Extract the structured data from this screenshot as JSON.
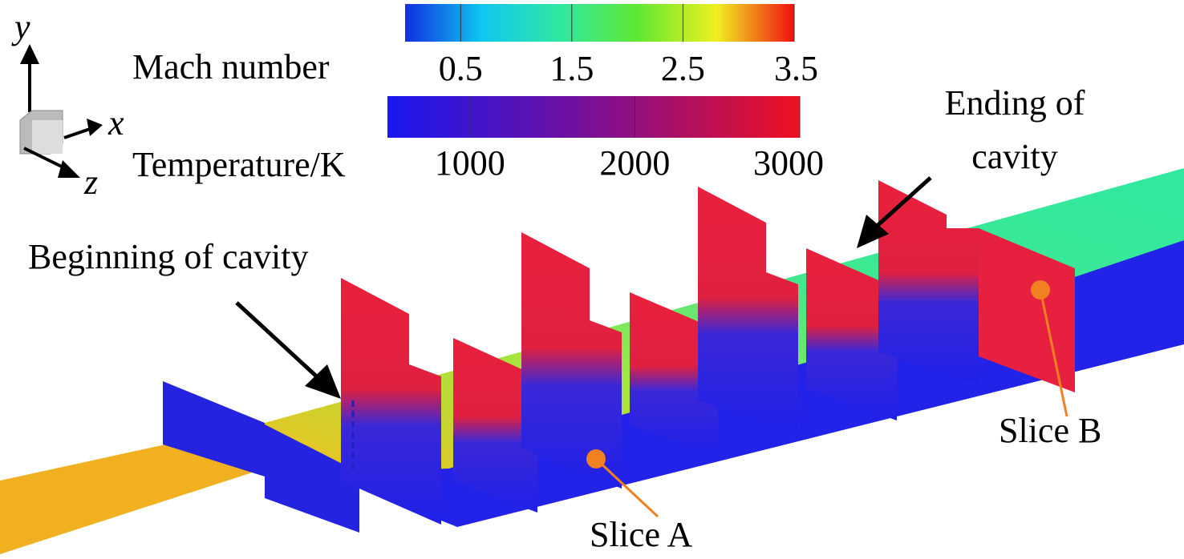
{
  "axes": {
    "y": "y",
    "x": "x",
    "z": "z"
  },
  "colorbars": [
    {
      "label": "Mach number",
      "lim": [
        0,
        3.5
      ],
      "ticks": [
        0.5,
        1.5,
        2.5,
        3.5
      ]
    },
    {
      "label": "Temperature/K",
      "lim": [
        500,
        3000
      ],
      "ticks": [
        1000,
        2000,
        3000
      ]
    }
  ],
  "annotations": {
    "beginning": "Beginning of cavity",
    "ending": [
      "Ending of",
      "cavity"
    ],
    "slice_a": "Slice A",
    "slice_b": "Slice B"
  }
}
